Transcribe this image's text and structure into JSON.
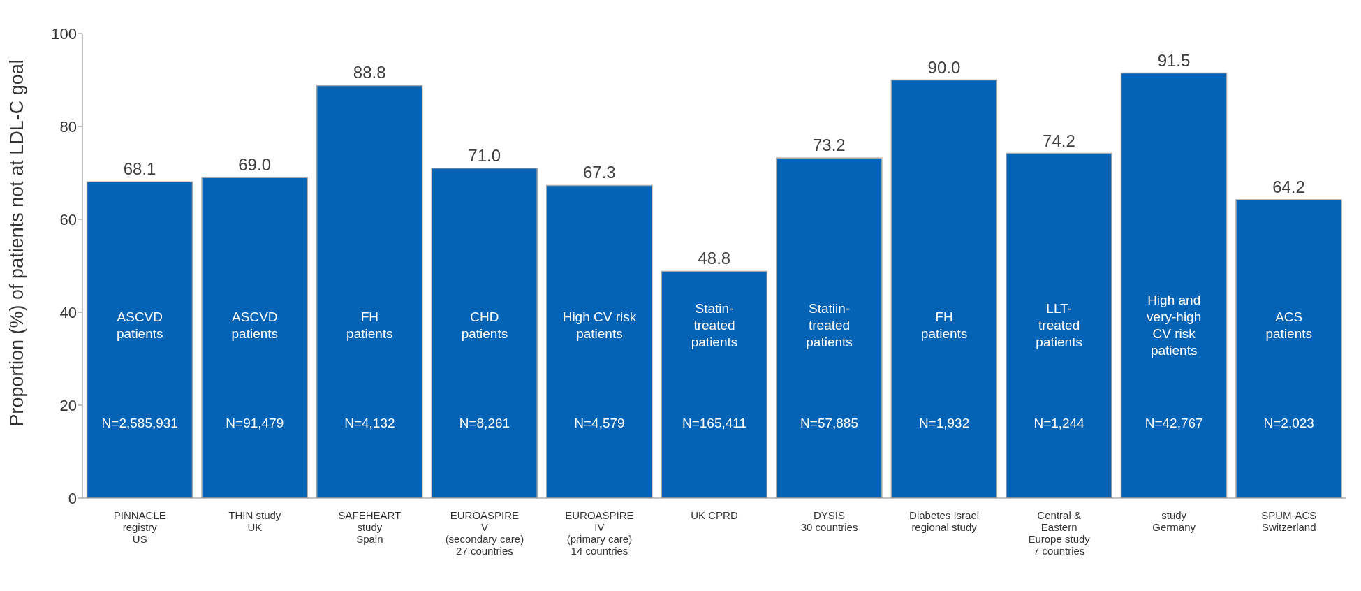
{
  "chart_data": {
    "type": "bar",
    "ylabel": "Proportion (%) of patients not at LDL-C goal",
    "categories": [
      "PINNACLE\nregistry\nUS",
      "THIN study\nUK",
      "SAFEHEART\nstudy\nSpain",
      "EUROASPIRE\nV\n(secondary care)\n27 countries",
      "EUROASPIRE\nIV\n(primary care)\n14 countries",
      "UK CPRD",
      "DYSIS\n30 countries",
      "Diabetes Israel\nregional study",
      "Central &\nEastern\nEurope study\n7 countries",
      "study\nGermany",
      "SPUM-ACS\nSwitzerland"
    ],
    "values": [
      68.1,
      69.0,
      88.8,
      71.0,
      67.3,
      48.8,
      73.2,
      90.0,
      74.2,
      91.5,
      64.2
    ],
    "value_labels": [
      "68.1",
      "69.0",
      "88.8",
      "71.0",
      "67.3",
      "48.8",
      "73.2",
      "90.0",
      "74.2",
      "91.5",
      "64.2"
    ],
    "color": "#0563b6",
    "ylim": [
      0,
      100
    ],
    "yticks": [
      0,
      20,
      40,
      60,
      80,
      100
    ],
    "annotations": [
      "ASCVD\npatients",
      "N=2,585,931",
      "ASCVD\npatients",
      "N=91,479",
      "FH\npatients",
      "N=4,132",
      "CHD\npatients",
      "N=8,261",
      "High CV risk\npatients",
      "N=4,579",
      "Statin-\ntreated\npatients",
      "N=165,411",
      "Statiin-\ntreated\npatients",
      "N=57,885",
      "FH\npatients",
      "N=1,932",
      "LLT-\ntreated\npatients",
      "N=1,244",
      "High and\nvery-high\nCV risk\npatients",
      "N=42,767",
      "ACS\npatients",
      "N=2,023"
    ]
  }
}
